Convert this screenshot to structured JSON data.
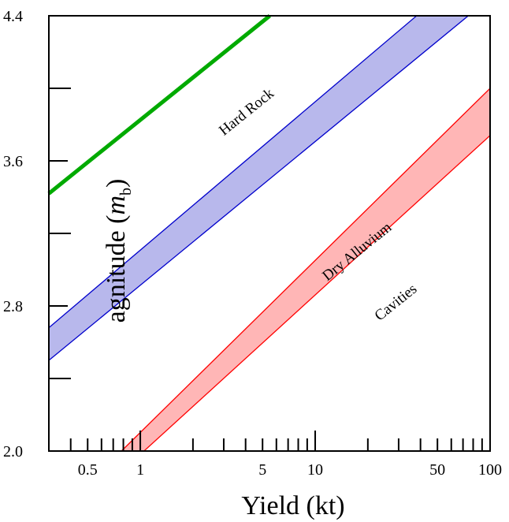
{
  "chart_data": {
    "type": "area",
    "title": "",
    "xlabel": "Yield (kt)",
    "ylabel": "Magnitude (m_b)",
    "ylabel_visible": "agnitude (",
    "ylabel_symbol": "m",
    "ylabel_subscript": "b",
    "ylabel_close": ")",
    "x_scale": "log",
    "xlim": [
      0.3,
      100
    ],
    "ylim": [
      2.0,
      4.4
    ],
    "x_tick_labels": [
      "0.5",
      "1",
      "5",
      "10",
      "50",
      "100"
    ],
    "x_tick_values": [
      0.5,
      1,
      5,
      10,
      50,
      100
    ],
    "y_tick_labels": [
      "2.0",
      "2.8",
      "3.6",
      "4.4"
    ],
    "y_tick_values": [
      2.0,
      2.8,
      3.6,
      4.4
    ],
    "y_minor_ticks": [
      2.4,
      3.2,
      4.0
    ],
    "grid": false,
    "series": [
      {
        "name": "Hard Rock",
        "kind": "line",
        "color": "#00aa00",
        "points": [
          [
            0.3,
            3.42
          ],
          [
            5.5,
            4.4
          ]
        ]
      },
      {
        "name": "Dry Alluvium",
        "kind": "band",
        "stroke": "#0000cc",
        "fill": "#b8b8ec",
        "upper": [
          [
            0.3,
            2.68
          ],
          [
            38,
            4.4
          ]
        ],
        "lower": [
          [
            0.3,
            2.5
          ],
          [
            75,
            4.4
          ]
        ]
      },
      {
        "name": "Cavities",
        "kind": "band",
        "stroke": "#ff0000",
        "fill": "#ffb6b6",
        "upper": [
          [
            0.78,
            2.0
          ],
          [
            100,
            4.0
          ]
        ],
        "lower": [
          [
            1.05,
            2.0
          ],
          [
            100,
            3.74
          ]
        ]
      }
    ],
    "annotations": [
      {
        "text": "Hard Rock",
        "x": 4.2,
        "y": 3.85
      },
      {
        "text": "Dry Alluvium",
        "x": 18,
        "y": 3.08
      },
      {
        "text": "Cavities",
        "x": 30,
        "y": 2.8
      }
    ]
  }
}
